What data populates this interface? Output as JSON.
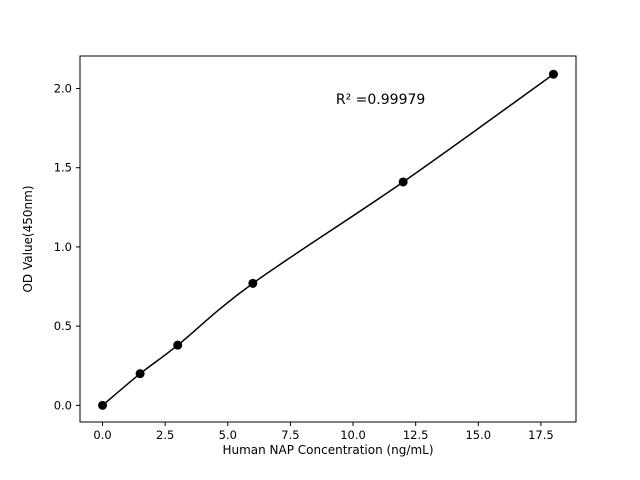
{
  "figure": {
    "background": "#ffffff"
  },
  "chart_data": {
    "type": "scatter",
    "x": [
      0,
      1.5,
      3,
      6,
      12,
      18
    ],
    "y": [
      0.0,
      0.2,
      0.38,
      0.77,
      1.41,
      2.09
    ],
    "title": "",
    "xlabel": "Human NAP Concentration (ng/mL)",
    "ylabel": "OD Value(450nm)",
    "xlim": [
      -0.9,
      18.9
    ],
    "ylim": [
      -0.105,
      2.205
    ],
    "xticks": {
      "values": [
        0,
        2.5,
        5,
        7.5,
        10,
        12.5,
        15,
        17.5
      ],
      "labels": [
        "0.0",
        "2.5",
        "5.0",
        "7.5",
        "10.0",
        "12.5",
        "15.0",
        "17.5"
      ]
    },
    "yticks": {
      "values": [
        0,
        0.5,
        1,
        1.5,
        2
      ],
      "labels": [
        "0.0",
        "0.5",
        "1.0",
        "1.5",
        "2.0"
      ]
    },
    "annotation": {
      "text": "R² =0.99979",
      "x": 11.1,
      "y": 1.93
    },
    "line_color": "#000000",
    "marker_color": "#000000",
    "grid": false
  }
}
